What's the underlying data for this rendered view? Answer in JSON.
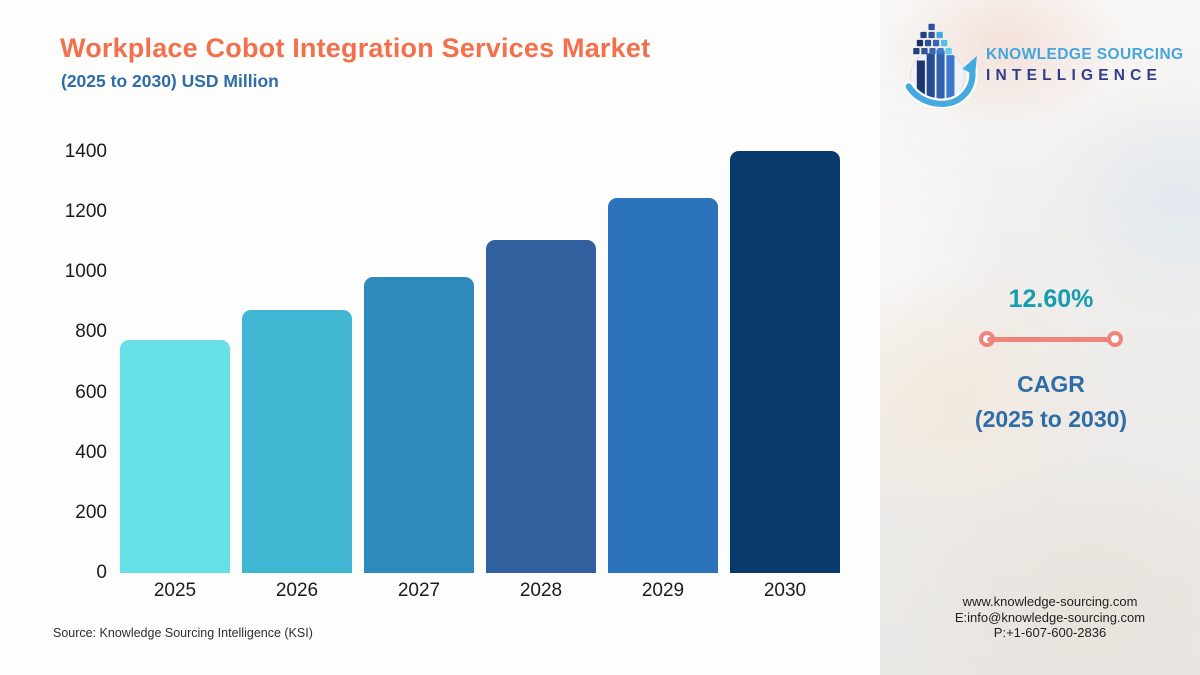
{
  "title": "Workplace Cobot Integration Services Market",
  "subtitle": "(2025 to 2030) USD Million",
  "logo": {
    "line1": "KNOWLEDGE SOURCING",
    "line2": "INTELLIGENCE",
    "icon": "globe-bars-arrow-logo",
    "line1_color": "#45A5DC",
    "line2_color": "#333B8D"
  },
  "chart_data": {
    "type": "bar",
    "title": "Workplace Cobot Integration Services Market",
    "subtitle": "(2025 to 2030) USD Million",
    "unit": "USD Million",
    "categories": [
      "2025",
      "2026",
      "2027",
      "2028",
      "2029",
      "2030"
    ],
    "values": [
      775,
      873,
      983,
      1106,
      1246,
      1403
    ],
    "bar_colors": [
      "#67DFE6",
      "#41B6D3",
      "#2E8ABB",
      "#31609F",
      "#2B73BB",
      "#083A6B"
    ],
    "ylim": [
      0,
      1400
    ],
    "yticks": [
      0,
      200,
      400,
      600,
      800,
      1000,
      1200,
      1400
    ],
    "xlabel": "",
    "ylabel": "",
    "grid": false,
    "legend": "none"
  },
  "cagr": {
    "value": "12.60%",
    "label": "CAGR",
    "period": "(2025 to 2030)",
    "value_color": "#159DB0",
    "text_color": "#2E6DA8",
    "line_color": "#F2827C"
  },
  "source": "Source: Knowledge Sourcing Intelligence (KSI)",
  "contact": {
    "website": "www.knowledge-sourcing.com",
    "email": "E:info@knowledge-sourcing.com",
    "phone": "P:+1-607-600-2836"
  },
  "colors": {
    "title": "#F4704C",
    "subtitle": "#2E6DA8"
  }
}
